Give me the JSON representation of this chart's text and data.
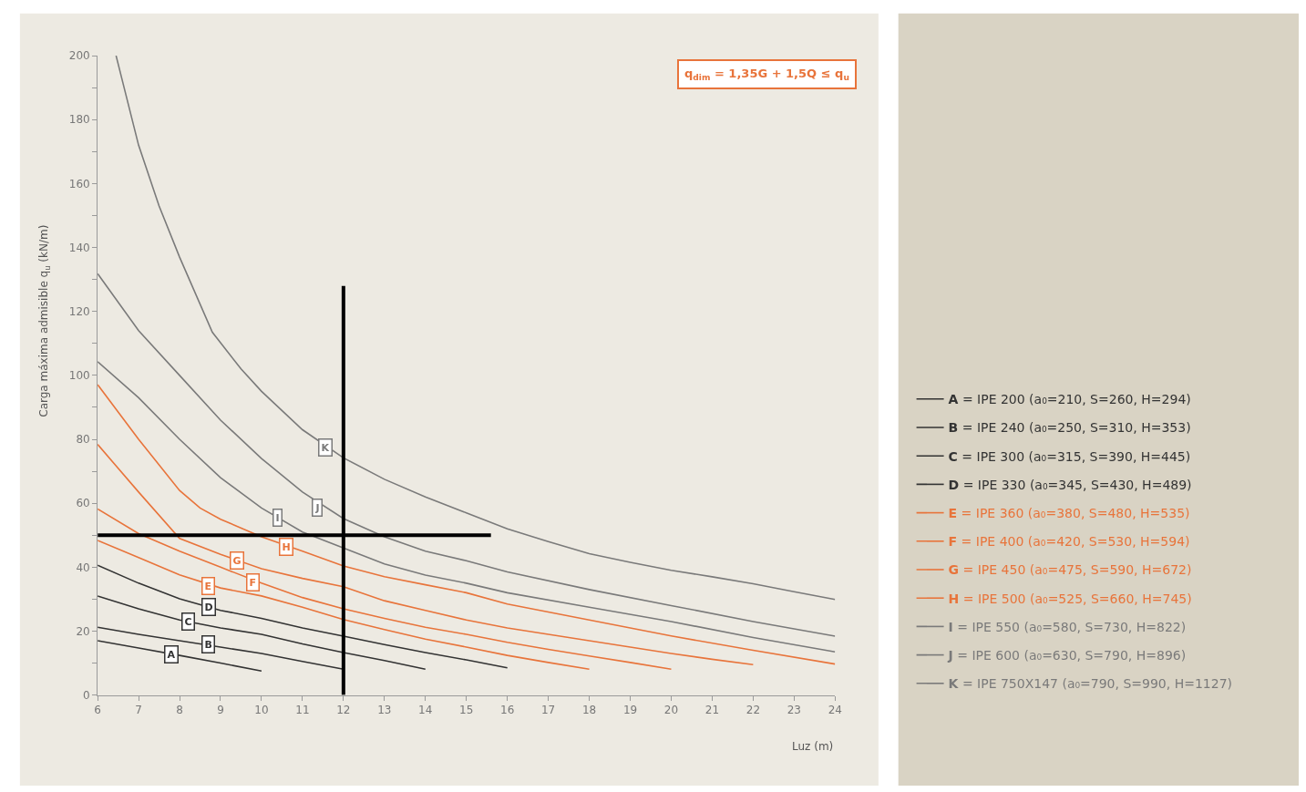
{
  "chart_data": {
    "type": "line",
    "xlabel": "Luz (m)",
    "ylabel": "Carga máxima admisible q$_{u}$ (kN/m)",
    "xlim": [
      6,
      24
    ],
    "xticks": [
      6,
      7,
      8,
      9,
      10,
      11,
      12,
      13,
      14,
      15,
      16,
      17,
      18,
      19,
      20,
      21,
      22,
      23,
      24
    ],
    "ylim": [
      0,
      200
    ],
    "yticks": [
      0,
      {
        "value": 10,
        "label": null
      },
      20,
      {
        "value": 30,
        "label": null
      },
      40,
      {
        "value": 50,
        "label": null
      },
      60,
      {
        "value": 70,
        "label": null
      },
      80,
      {
        "value": 90,
        "label": null
      },
      100,
      {
        "value": 110,
        "label": null
      },
      120,
      {
        "value": 130,
        "label": null
      },
      140,
      {
        "value": 150,
        "label": null
      },
      160,
      {
        "value": 170,
        "label": null
      },
      180,
      {
        "value": 190,
        "label": null
      },
      200
    ],
    "grid": false,
    "legend": "right",
    "marker": "none",
    "line_style": "solid",
    "series": [
      {
        "name": "A = IPE 200 (a₀=210, S=260, H=294)",
        "color": "#333333",
        "x": [
          6,
          7,
          8,
          9,
          10
        ],
        "values": [
          17,
          14.7,
          12.4,
          10,
          7.5
        ]
      },
      {
        "name": "B = IPE 240 (a₀=250, S=310, H=353)",
        "color": "#333333",
        "x": [
          6,
          7,
          8,
          9,
          10,
          11,
          12
        ],
        "values": [
          21.2,
          19,
          17,
          15,
          13,
          10.5,
          8.1
        ]
      },
      {
        "name": "C = IPE 300 (a₀=315, S=390, H=445)",
        "color": "#333333",
        "x": [
          6,
          7,
          8,
          9,
          10,
          11,
          12,
          13,
          14
        ],
        "values": [
          31,
          27,
          23.5,
          21,
          19,
          16,
          13.3,
          10.8,
          8.1
        ]
      },
      {
        "name": "D = IPE 330 (a₀=345, S=430, H=489)",
        "color": "#333333",
        "x": [
          6,
          7,
          8,
          9,
          10,
          11,
          12,
          13,
          14,
          15,
          16
        ],
        "values": [
          40.6,
          35,
          30.1,
          26.5,
          24,
          21,
          18.4,
          15.8,
          13.3,
          11,
          8.5
        ]
      },
      {
        "name": "E = IPE 360 (a₀=380, S=480, H=535)",
        "color": "#e8743b",
        "x": [
          6,
          7,
          8,
          9,
          10,
          11,
          12,
          13,
          14,
          15,
          16,
          17,
          18
        ],
        "values": [
          48.4,
          43,
          37.6,
          33.5,
          31,
          27.5,
          23.6,
          20.5,
          17.5,
          15,
          12.4,
          10.2,
          8.1
        ]
      },
      {
        "name": "F = IPE 400 (a₀=420, S=530, H=594)",
        "color": "#e8743b",
        "x": [
          6,
          7,
          8,
          9,
          10,
          11,
          12,
          13,
          14,
          15,
          16,
          17,
          18,
          19,
          20
        ],
        "values": [
          58.2,
          50.5,
          45,
          40,
          35,
          30.5,
          27,
          24,
          21.2,
          19,
          16.5,
          14.3,
          12.2,
          10.2,
          8.1
        ]
      },
      {
        "name": "G = IPE 450 (a₀=475, S=590, H=672)",
        "color": "#e8743b",
        "x": [
          6,
          7,
          8,
          9,
          10,
          11,
          12,
          13,
          14,
          15,
          16,
          17,
          18,
          19,
          20,
          21,
          22
        ],
        "values": [
          78.4,
          63.5,
          49,
          44,
          39.5,
          36.5,
          33.9,
          29.5,
          26.5,
          23.5,
          21,
          19,
          17,
          15,
          13,
          11.2,
          9.5
        ]
      },
      {
        "name": "H = IPE 500 (a₀=525, S=660, H=745)",
        "color": "#e8743b",
        "x": [
          6,
          7,
          8,
          8.5,
          9,
          10,
          11,
          12,
          13,
          14,
          15,
          16,
          18,
          20,
          22,
          24
        ],
        "values": [
          97.1,
          80,
          64,
          58.5,
          55,
          49.5,
          45,
          40.4,
          37,
          34.5,
          32,
          28.5,
          23.5,
          18.5,
          14,
          9.7
        ]
      },
      {
        "name": "I = IPE 550 (a₀=580, S=730, H=822)",
        "color": "#7a7a7a",
        "x": [
          6,
          7,
          8,
          9,
          10,
          11,
          12,
          13,
          14,
          15,
          16,
          18,
          20,
          22,
          24
        ],
        "values": [
          104.3,
          93,
          80,
          68,
          58.5,
          51,
          46,
          41,
          37.5,
          35,
          32,
          27.5,
          23,
          18,
          13.5
        ]
      },
      {
        "name": "J = IPE 600 (a₀=630, S=790, H=896)",
        "color": "#7a7a7a",
        "x": [
          6,
          7,
          8,
          9,
          10,
          11,
          12,
          13,
          14,
          15,
          16,
          18,
          20,
          22,
          24
        ],
        "values": [
          131.8,
          114,
          100,
          86,
          74,
          63.5,
          55.2,
          49.5,
          45,
          42,
          38.5,
          33,
          28,
          23,
          18.4
        ]
      },
      {
        "name": "K = IPE 750X147 (a₀=790, S=990, H=1127)",
        "color": "#7a7a7a",
        "x": [
          6.45,
          7,
          7.5,
          8,
          8.8,
          9.5,
          10,
          11,
          12,
          13,
          14,
          15,
          16,
          17,
          18,
          19,
          20,
          21,
          22,
          23,
          24
        ],
        "values": [
          200,
          172,
          153,
          137,
          113.5,
          102,
          95,
          83,
          74.2,
          67.5,
          62,
          57,
          52,
          48,
          44.2,
          41.5,
          39,
          37,
          34.8,
          32.3,
          29.9
        ]
      },
      {
        "color": "#000000",
        "x": [
          6,
          15.6
        ],
        "values": [
          50,
          50
        ]
      },
      {
        "color": "#000000",
        "x": [
          12,
          12
        ],
        "values": [
          0,
          128
        ]
      }
    ],
    "annotations": [
      "q$_{dim}$ = 1,35G + 1,5Q ≤ q$_{u}$",
      {
        "text": "A",
        "x": 7.8,
        "y": 12.8
      },
      {
        "text": "B",
        "x": 8.7,
        "y": 15.8
      },
      {
        "text": "C",
        "x": 8.2,
        "y": 23
      },
      {
        "text": "D",
        "x": 8.7,
        "y": 27.5
      },
      {
        "text": "E",
        "x": 8.7,
        "y": 34
      },
      {
        "text": "F",
        "x": 9.8,
        "y": 35.3
      },
      {
        "text": "G",
        "x": 9.4,
        "y": 42.1
      },
      {
        "text": "H",
        "x": 10.6,
        "y": 46.5
      },
      {
        "text": "I",
        "x": 10.4,
        "y": 55.4
      },
      {
        "text": "J",
        "x": 11.35,
        "y": 58.7
      },
      {
        "text": "K",
        "x": 11.55,
        "y": 77.4
      }
    ]
  }
}
